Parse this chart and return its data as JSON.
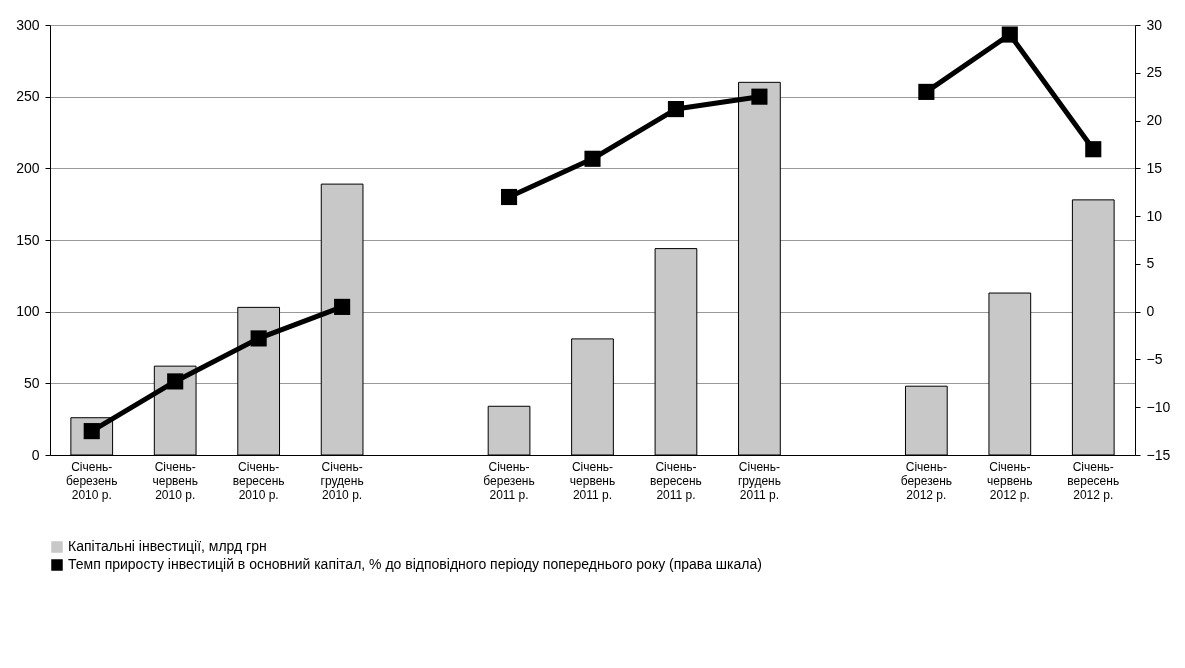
{
  "chart_data": {
    "type": "bar",
    "categories": [
      "Січень-\nберезень\n2010 р.",
      "Січень-\nчервень\n2010 р.",
      "Січень-\nвересень\n2010 р.",
      "Січень-\nгрудень\n2010 р.",
      null,
      "Січень-\nберезень\n2011 р.",
      "Січень-\nчервень\n2011 р.",
      "Січень-\nвересень\n2011 р.",
      "Січень-\nгрудень\n2011 р.",
      null,
      "Січень-\nберезень\n2012 р.",
      "Січень-\nчервень\n2012 р.",
      "Січень-\nвересень\n2012 р."
    ],
    "series": [
      {
        "name": "Капітальні інвестиції, млрд грн",
        "color": "#c8c8c8",
        "values": [
          26,
          62,
          103,
          189,
          null,
          34,
          81,
          144,
          260,
          null,
          48,
          113,
          178
        ]
      },
      {
        "name": "Темп приросту  інвестицій в основний капітал, % до відповідного періоду попереднього року (права шкала)",
        "type": "line",
        "axis": "y2",
        "color": "#000000",
        "values": [
          -12.5,
          -7.3,
          -2.8,
          0.5,
          null,
          12,
          16,
          21.2,
          22.5,
          null,
          23,
          29,
          17
        ]
      }
    ],
    "ylim": [
      0,
      300
    ],
    "yticks": [
      0,
      50,
      100,
      150,
      200,
      250,
      300
    ],
    "y2lim": [
      -15,
      30
    ],
    "y2ticks": [
      -15,
      -10,
      -5,
      0,
      5,
      10,
      15,
      20,
      25,
      30
    ],
    "grid": "y",
    "legend": "bottom left",
    "marker": "square",
    "line_style": "solid"
  }
}
